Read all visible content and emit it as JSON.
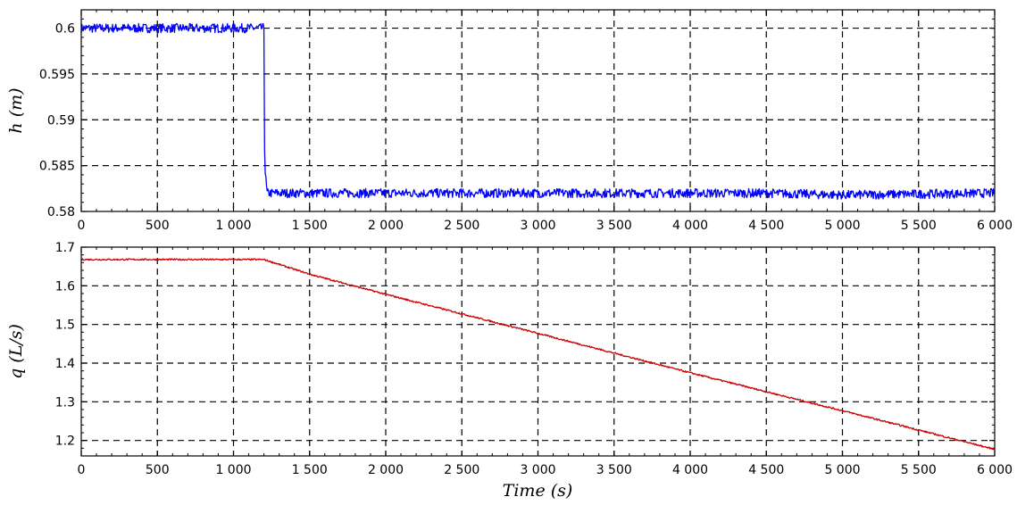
{
  "chart_data": [
    {
      "type": "line",
      "title": "",
      "xlabel": "",
      "ylabel": "h (m)",
      "xlim": [
        0,
        6000
      ],
      "ylim": [
        0.58,
        0.602
      ],
      "xticks": [
        0,
        500,
        1000,
        1500,
        2000,
        2500,
        3000,
        3500,
        4000,
        4500,
        5000,
        5500,
        6000
      ],
      "xtick_labels": [
        "0",
        "500",
        "1 000",
        "1 500",
        "2 000",
        "2 500",
        "3 000",
        "3 500",
        "4 000",
        "4 500",
        "5 000",
        "5 500",
        "6 000"
      ],
      "yticks": [
        0.58,
        0.585,
        0.59,
        0.595,
        0.6
      ],
      "ytick_labels": [
        "0.58",
        "0.585",
        "0.59",
        "0.595",
        "0.6"
      ],
      "grid": true,
      "series": [
        {
          "color": "#0000ff",
          "x": [
            0,
            1180,
            1200,
            1205,
            1220,
            2000,
            3000,
            4000,
            4500,
            5000,
            5500,
            6000
          ],
          "y": [
            0.6,
            0.6,
            0.6,
            0.585,
            0.582,
            0.582,
            0.582,
            0.582,
            0.582,
            0.5818,
            0.5819,
            0.582
          ],
          "noise": 0.0005
        }
      ]
    },
    {
      "type": "line",
      "title": "",
      "xlabel": "Time (s)",
      "ylabel": "q (L/s)",
      "xlim": [
        0,
        6000
      ],
      "ylim": [
        1.16,
        1.7
      ],
      "xticks": [
        0,
        500,
        1000,
        1500,
        2000,
        2500,
        3000,
        3500,
        4000,
        4500,
        5000,
        5500,
        6000
      ],
      "xtick_labels": [
        "0",
        "500",
        "1 000",
        "1 500",
        "2 000",
        "2 500",
        "3 000",
        "3 500",
        "4 000",
        "4 500",
        "5 000",
        "5 500",
        "6 000"
      ],
      "yticks": [
        1.2,
        1.3,
        1.4,
        1.5,
        1.6,
        1.7
      ],
      "ytick_labels": [
        "1.2",
        "1.3",
        "1.4",
        "1.5",
        "1.6",
        "1.7"
      ],
      "grid": true,
      "series": [
        {
          "color": "#cc0000",
          "x": [
            0,
            1000,
            1200,
            1500,
            2000,
            3000,
            4000,
            5000,
            6000
          ],
          "y": [
            1.668,
            1.668,
            1.668,
            1.63,
            1.578,
            1.477,
            1.375,
            1.277,
            1.177
          ],
          "noise": 0.002
        }
      ]
    }
  ]
}
